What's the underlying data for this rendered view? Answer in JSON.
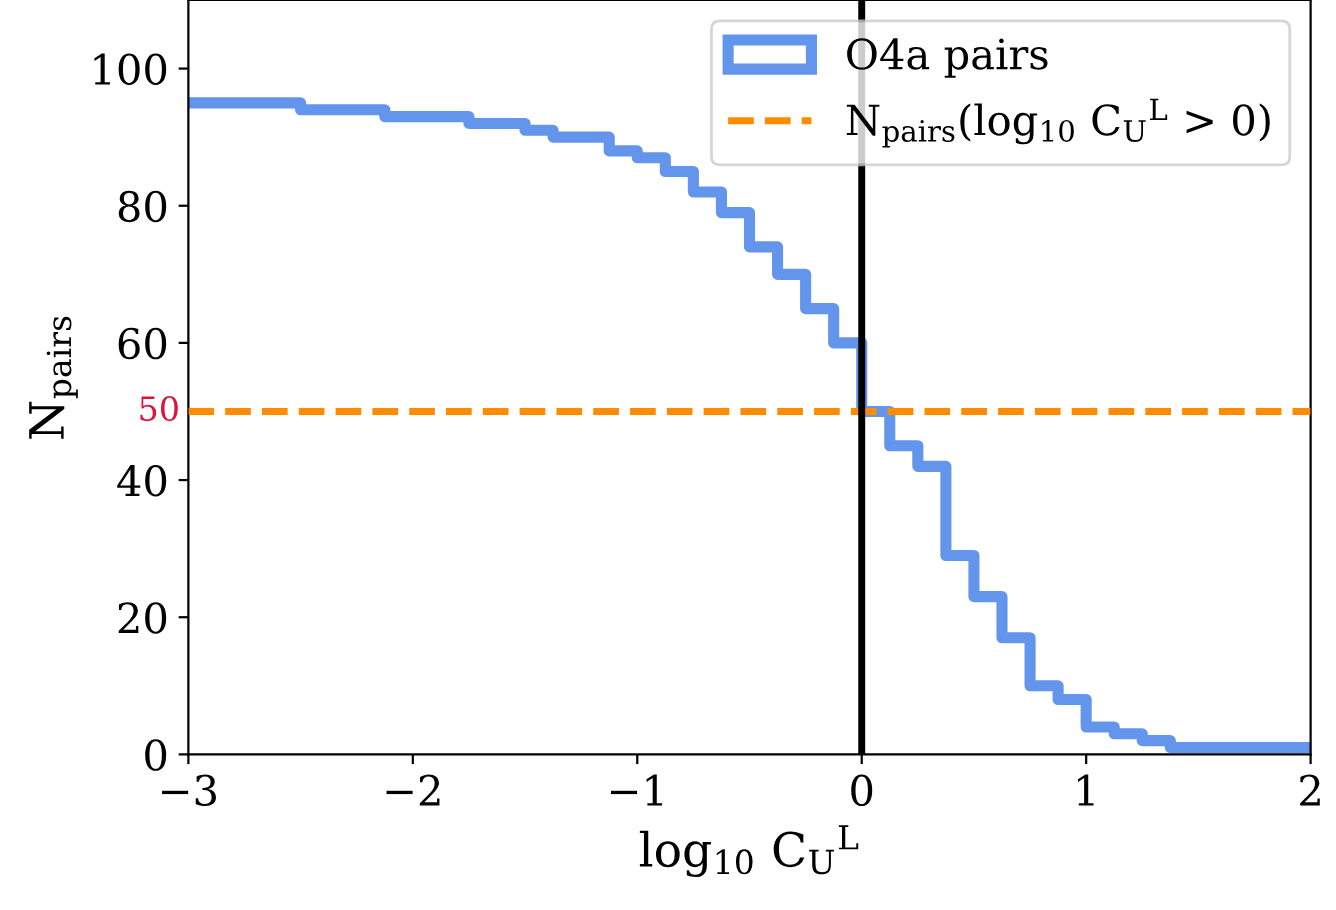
{
  "chart_data": {
    "type": "histogram",
    "xlabel": "log$_{10}$ C$_{U}$$^{L}$",
    "ylabel": "N$_{pairs}$",
    "bins": [
      -3,
      -2.875,
      -2.75,
      -2.625,
      -2.5,
      -2.375,
      -2.25,
      -2.125,
      -2,
      -1.875,
      -1.75,
      -1.625,
      -1.5,
      -1.375,
      -1.25,
      -1.125,
      -1,
      -0.875,
      -0.75,
      -0.625,
      -0.5,
      -0.375,
      -0.25,
      -0.125,
      0,
      0.125,
      0.25,
      0.375,
      0.5,
      0.625,
      0.75,
      0.875,
      1,
      1.125,
      1.25,
      1.375,
      1.5,
      1.625,
      1.75,
      1.875,
      2
    ],
    "series": [
      {
        "name": "O4a pairs",
        "color": "#6495ed",
        "values": [
          95,
          95,
          95,
          95,
          94,
          94,
          94,
          93,
          93,
          93,
          92,
          92,
          91,
          90,
          90,
          88,
          87,
          85,
          82,
          79,
          74,
          70,
          65,
          60,
          50,
          45,
          42,
          29,
          23,
          17,
          10,
          8,
          4,
          3,
          2,
          1,
          1,
          1,
          1,
          1
        ]
      }
    ],
    "ref_lines": [
      {
        "axis": "y",
        "value": 50,
        "label": "N$_{pairs}$(log$_{10}$ C$_{U}$$^{L}$ > 0)",
        "color": "#ff8c00",
        "line_style": "dashed"
      },
      {
        "axis": "x",
        "value": 0,
        "color": "#000000",
        "line_style": "solid"
      }
    ],
    "xlim": [
      -3,
      2
    ],
    "ylim": [
      0,
      110
    ],
    "xticks": [
      {
        "value": -3,
        "label": "−3"
      },
      {
        "value": -2,
        "label": "−2"
      },
      {
        "value": -1,
        "label": "−1"
      },
      0,
      1,
      2
    ],
    "yticks": [
      0,
      20,
      40,
      60,
      80,
      100
    ],
    "annotations": [
      {
        "text": "50",
        "x": -3,
        "y": 50
      }
    ],
    "legend": "top right",
    "grid": false
  }
}
